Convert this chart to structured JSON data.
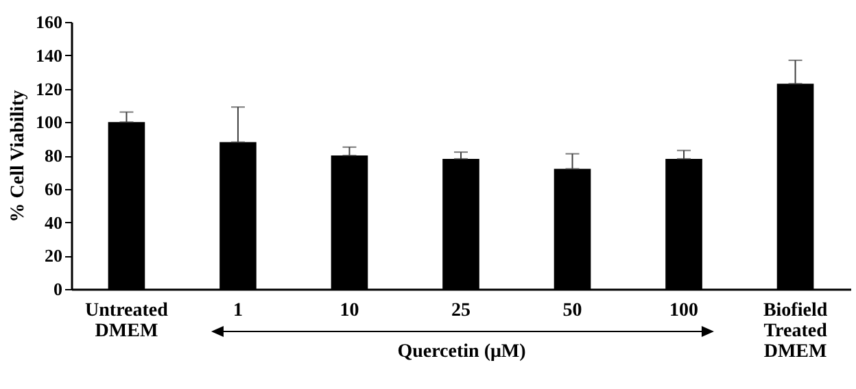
{
  "chart_data": {
    "type": "bar",
    "ylabel": "% Cell Viability",
    "xlabel": "Quercetin (μM)",
    "categories": [
      "Untreated DMEM",
      "1",
      "10",
      "25",
      "50",
      "100",
      "Biofield Treated DMEM"
    ],
    "values": [
      100,
      88,
      80,
      78,
      72,
      78,
      123
    ],
    "errors": [
      [
        100,
        106
      ],
      [
        88,
        109
      ],
      [
        80,
        85
      ],
      [
        78,
        82
      ],
      [
        72,
        81
      ],
      [
        78,
        83
      ],
      [
        123,
        137
      ]
    ],
    "color": "#000000",
    "ylim": [
      0,
      160
    ],
    "yticks": [
      0,
      20,
      40,
      60,
      80,
      100,
      120,
      140,
      160
    ],
    "grid": false
  }
}
